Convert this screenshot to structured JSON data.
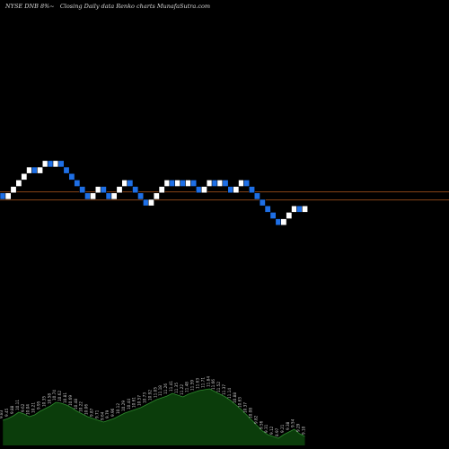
{
  "header": {
    "symbol": "NYSE DNB 8%~",
    "description": "Closing Daily data Renko charts MunafaSutra.com"
  },
  "colors": {
    "background": "#000000",
    "up_brick": "#ffffff",
    "down_brick": "#1e6fe6",
    "brick_edge": "#000000",
    "level_line": "#b35a1f",
    "volume_fill": "#0b3d0b",
    "volume_line": "#2e8b2e",
    "volume_label": "#c8c8c8"
  },
  "chart_data": [
    {
      "type": "renko",
      "x_axis": "brick index",
      "bricks": [
        {
          "direction": "down",
          "open": 12,
          "close": 11
        },
        {
          "direction": "up",
          "open": 11,
          "close": 12
        },
        {
          "direction": "up",
          "open": 12,
          "close": 13
        },
        {
          "direction": "up",
          "open": 13,
          "close": 14
        },
        {
          "direction": "up",
          "open": 14,
          "close": 15
        },
        {
          "direction": "up",
          "open": 15,
          "close": 16
        },
        {
          "direction": "down",
          "open": 16,
          "close": 15
        },
        {
          "direction": "up",
          "open": 15,
          "close": 16
        },
        {
          "direction": "up",
          "open": 16,
          "close": 17
        },
        {
          "direction": "down",
          "open": 17,
          "close": 16
        },
        {
          "direction": "up",
          "open": 16,
          "close": 17
        },
        {
          "direction": "down",
          "open": 17,
          "close": 16
        },
        {
          "direction": "down",
          "open": 16,
          "close": 15
        },
        {
          "direction": "down",
          "open": 15,
          "close": 14
        },
        {
          "direction": "down",
          "open": 14,
          "close": 13
        },
        {
          "direction": "down",
          "open": 13,
          "close": 12
        },
        {
          "direction": "down",
          "open": 12,
          "close": 11
        },
        {
          "direction": "up",
          "open": 11,
          "close": 12
        },
        {
          "direction": "up",
          "open": 12,
          "close": 13
        },
        {
          "direction": "down",
          "open": 13,
          "close": 12
        },
        {
          "direction": "down",
          "open": 12,
          "close": 11
        },
        {
          "direction": "up",
          "open": 11,
          "close": 12
        },
        {
          "direction": "up",
          "open": 12,
          "close": 13
        },
        {
          "direction": "up",
          "open": 13,
          "close": 14
        },
        {
          "direction": "down",
          "open": 14,
          "close": 13
        },
        {
          "direction": "down",
          "open": 13,
          "close": 12
        },
        {
          "direction": "down",
          "open": 12,
          "close": 11
        },
        {
          "direction": "down",
          "open": 11,
          "close": 10
        },
        {
          "direction": "up",
          "open": 10,
          "close": 11
        },
        {
          "direction": "up",
          "open": 11,
          "close": 12
        },
        {
          "direction": "up",
          "open": 12,
          "close": 13
        },
        {
          "direction": "up",
          "open": 13,
          "close": 14
        },
        {
          "direction": "down",
          "open": 14,
          "close": 13
        },
        {
          "direction": "up",
          "open": 13,
          "close": 14
        },
        {
          "direction": "down",
          "open": 14,
          "close": 13
        },
        {
          "direction": "up",
          "open": 13,
          "close": 14
        },
        {
          "direction": "down",
          "open": 14,
          "close": 13
        },
        {
          "direction": "down",
          "open": 13,
          "close": 12
        },
        {
          "direction": "up",
          "open": 12,
          "close": 13
        },
        {
          "direction": "up",
          "open": 13,
          "close": 14
        },
        {
          "direction": "down",
          "open": 14,
          "close": 13
        },
        {
          "direction": "up",
          "open": 13,
          "close": 14
        },
        {
          "direction": "down",
          "open": 14,
          "close": 13
        },
        {
          "direction": "down",
          "open": 13,
          "close": 12
        },
        {
          "direction": "up",
          "open": 12,
          "close": 13
        },
        {
          "direction": "up",
          "open": 13,
          "close": 14
        },
        {
          "direction": "down",
          "open": 14,
          "close": 13
        },
        {
          "direction": "down",
          "open": 13,
          "close": 12
        },
        {
          "direction": "down",
          "open": 12,
          "close": 11
        },
        {
          "direction": "down",
          "open": 11,
          "close": 10
        },
        {
          "direction": "down",
          "open": 10,
          "close": 9
        },
        {
          "direction": "down",
          "open": 9,
          "close": 8
        },
        {
          "direction": "down",
          "open": 8,
          "close": 7
        },
        {
          "direction": "up",
          "open": 7,
          "close": 8
        },
        {
          "direction": "up",
          "open": 8,
          "close": 9
        },
        {
          "direction": "up",
          "open": 9,
          "close": 10
        },
        {
          "direction": "down",
          "open": 10,
          "close": 9
        },
        {
          "direction": "up",
          "open": 9,
          "close": 10
        }
      ],
      "reference_levels": [
        12.15,
        10.9
      ]
    },
    {
      "type": "area",
      "x_axis": "brick index",
      "y_axis": "volume (relative)",
      "values": [
        28,
        30,
        33,
        37,
        35,
        32,
        34,
        38,
        41,
        44,
        48,
        47,
        45,
        42,
        38,
        35,
        32,
        30,
        28,
        26,
        28,
        30,
        33,
        36,
        38,
        40,
        42,
        45,
        48,
        51,
        53,
        55,
        58,
        56,
        54,
        57,
        59,
        61,
        62,
        63,
        60,
        57,
        54,
        50,
        45,
        40,
        34,
        28,
        22,
        16,
        12,
        10,
        8,
        12,
        15,
        18,
        13,
        10
      ],
      "labels": [
        "9.83",
        "9.45",
        "9.88",
        "10.11",
        "9.62",
        "10.04",
        "10.21",
        "9.95",
        "10.35",
        "10.58",
        "10.74",
        "10.62",
        "10.81",
        "10.69",
        "10.48",
        "10.22",
        "10.06",
        "9.87",
        "9.71",
        "9.64",
        "9.79",
        "9.96",
        "10.12",
        "10.29",
        "10.44",
        "10.61",
        "10.57",
        "10.73",
        "10.92",
        "11.05",
        "11.18",
        "11.26",
        "11.41",
        "11.35",
        "11.22",
        "11.48",
        "11.59",
        "11.63",
        "11.71",
        "11.84",
        "11.66",
        "11.52",
        "11.37",
        "11.14",
        "10.88",
        "10.63",
        "10.37",
        "10.08",
        "9.82",
        "9.56",
        "9.31",
        "9.12",
        "8.97",
        "9.21",
        "9.38",
        "9.54",
        "9.29",
        "9.10"
      ]
    }
  ]
}
